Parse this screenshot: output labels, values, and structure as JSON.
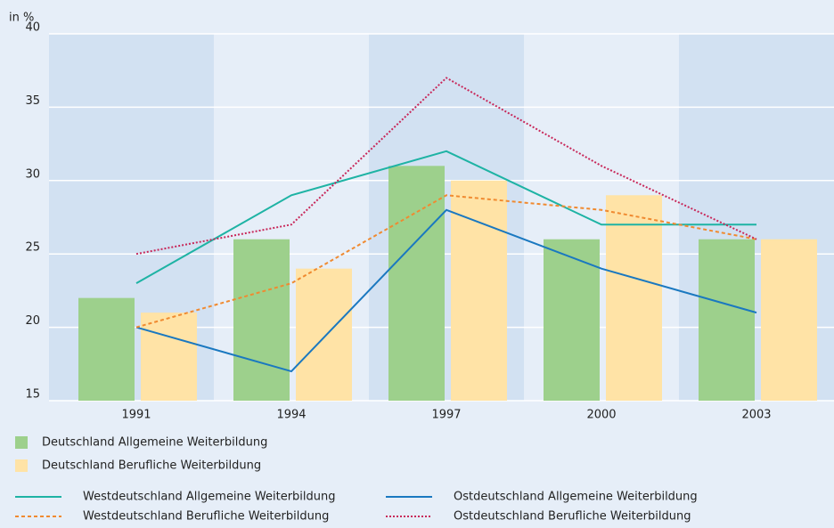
{
  "chart_data": {
    "type": "bar",
    "y_label": "in %",
    "categories": [
      "1991",
      "1994",
      "1997",
      "2000",
      "2003"
    ],
    "ylim": [
      15,
      40
    ],
    "yticks": [
      15,
      20,
      25,
      30,
      35,
      40
    ],
    "grid": true,
    "series": [
      {
        "name": "Deutschland Allgemeine Weiterbildung",
        "type": "bar",
        "color": "#9dd08c",
        "values": [
          22,
          26,
          31,
          26,
          26
        ]
      },
      {
        "name": "Deutschland Berufliche Weiterbildung",
        "type": "bar",
        "color": "#ffe3a6",
        "values": [
          21,
          24,
          30,
          29,
          26
        ]
      },
      {
        "name": "Westdeutschland Allgemeine Weiterbildung",
        "type": "line",
        "color": "#1eb3a4",
        "dash": "solid",
        "values": [
          23,
          29,
          32,
          27,
          27
        ]
      },
      {
        "name": "Ostdeutschland Allgemeine Weiterbildung",
        "type": "line",
        "color": "#1a78c0",
        "dash": "solid",
        "values": [
          20,
          17,
          28,
          24,
          21
        ]
      },
      {
        "name": "Westdeutschland Berufliche Weiterbildung",
        "type": "line",
        "color": "#f08a30",
        "dash": "dashed",
        "values": [
          20,
          23,
          29,
          28,
          26
        ]
      },
      {
        "name": "Ostdeutschland Berufliche Weiterbildung",
        "type": "line",
        "color": "#c8285a",
        "dash": "dotted",
        "values": [
          25,
          27,
          37,
          31,
          26
        ]
      }
    ]
  }
}
